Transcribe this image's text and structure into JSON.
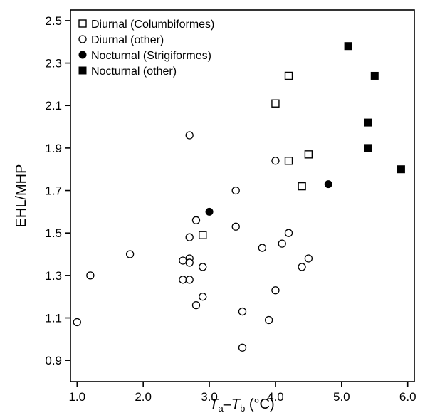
{
  "chart_data": {
    "type": "scatter",
    "xlabel": "T_a–T_b (°C)",
    "xlabel_parts": {
      "t": "T",
      "a": "a",
      "dash": "–",
      "b": "b",
      "unit": " (°C)"
    },
    "ylabel": "EHL/MHP",
    "xlim": [
      0.9,
      6.1
    ],
    "ylim": [
      0.8,
      2.55
    ],
    "xticks": [
      "1.0",
      "2.0",
      "3.0",
      "4.0",
      "5.0",
      "6.0"
    ],
    "yticks": [
      "0.9",
      "1.1",
      "1.3",
      "1.5",
      "1.7",
      "1.9",
      "2.1",
      "2.3",
      "2.5"
    ],
    "grid": false,
    "legend_position": "top-left",
    "series": [
      {
        "name": "Diurnal (Columbiformes)",
        "marker": "square-open",
        "points": [
          [
            4.2,
            2.24
          ],
          [
            4.0,
            2.11
          ],
          [
            4.5,
            1.87
          ],
          [
            4.2,
            1.84
          ],
          [
            4.4,
            1.72
          ],
          [
            2.9,
            1.49
          ]
        ]
      },
      {
        "name": "Diurnal (other)",
        "marker": "circle-open",
        "points": [
          [
            1.0,
            1.08
          ],
          [
            1.2,
            1.3
          ],
          [
            1.8,
            1.4
          ],
          [
            2.6,
            1.37
          ],
          [
            2.6,
            1.28
          ],
          [
            2.7,
            1.96
          ],
          [
            2.7,
            1.48
          ],
          [
            2.7,
            1.38
          ],
          [
            2.7,
            1.36
          ],
          [
            2.7,
            1.28
          ],
          [
            2.8,
            1.56
          ],
          [
            2.8,
            1.16
          ],
          [
            2.9,
            1.34
          ],
          [
            2.9,
            1.2
          ],
          [
            3.4,
            1.7
          ],
          [
            3.4,
            1.53
          ],
          [
            3.5,
            1.13
          ],
          [
            3.5,
            0.96
          ],
          [
            3.8,
            1.43
          ],
          [
            3.9,
            1.09
          ],
          [
            4.0,
            1.84
          ],
          [
            4.0,
            1.23
          ],
          [
            4.1,
            1.45
          ],
          [
            4.2,
            1.5
          ],
          [
            4.4,
            1.34
          ],
          [
            4.5,
            1.38
          ]
        ]
      },
      {
        "name": "Nocturnal (Strigiformes)",
        "marker": "circle-filled",
        "points": [
          [
            3.0,
            1.6
          ],
          [
            4.8,
            1.73
          ]
        ]
      },
      {
        "name": "Nocturnal (other)",
        "marker": "square-filled",
        "points": [
          [
            5.1,
            2.38
          ],
          [
            5.5,
            2.24
          ],
          [
            5.4,
            2.02
          ],
          [
            5.4,
            1.9
          ],
          [
            5.9,
            1.8
          ]
        ]
      }
    ]
  }
}
